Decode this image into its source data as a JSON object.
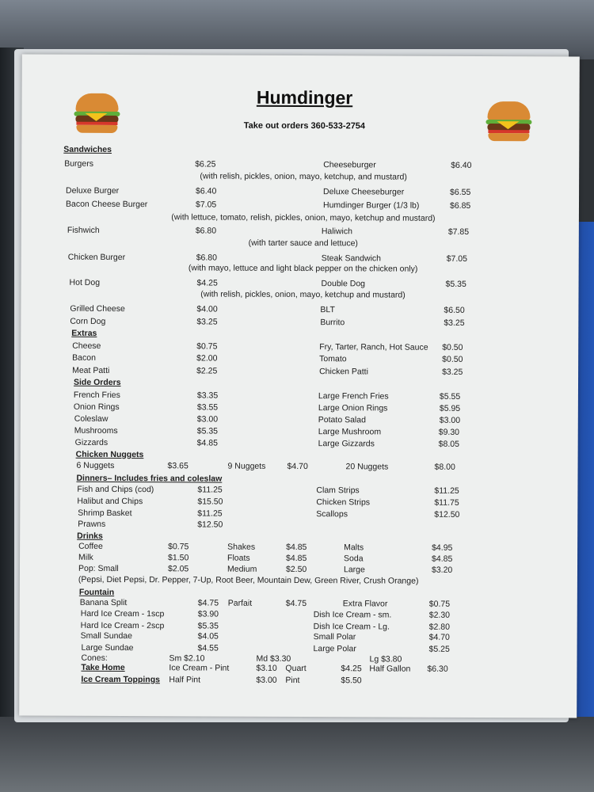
{
  "title": "Humdinger",
  "subtitle": "Take out orders 360-533-2754",
  "rows": [
    {
      "type": "heading",
      "cells": [
        "Sandwiches"
      ]
    },
    {
      "type": "item",
      "cells": [
        "Burgers",
        "$6.25",
        "Cheeseburger",
        "$6.40"
      ]
    },
    {
      "type": "note",
      "cells": [
        "(with relish, pickles, onion, mayo, ketchup, and mustard)"
      ]
    },
    {
      "type": "item",
      "cells": [
        "Deluxe Burger",
        "$6.40",
        "Deluxe Cheeseburger",
        "$6.55"
      ]
    },
    {
      "type": "item",
      "cells": [
        "Bacon Cheese Burger",
        "$7.05",
        "Humdinger Burger (1/3 lb)",
        "$6.85"
      ]
    },
    {
      "type": "note",
      "cells": [
        "(with lettuce, tomato, relish, pickles, onion, mayo, ketchup and mustard)"
      ]
    },
    {
      "type": "item",
      "cells": [
        "Fishwich",
        "$6.80",
        "Haliwich",
        "$7.85"
      ]
    },
    {
      "type": "note",
      "cells": [
        "(with tarter sauce and lettuce)"
      ]
    },
    {
      "type": "item",
      "cells": [
        "Chicken Burger",
        "$6.80",
        "Steak Sandwich",
        "$7.05"
      ]
    },
    {
      "type": "note",
      "cells": [
        "(with mayo, lettuce and light black pepper on the chicken only)"
      ]
    },
    {
      "type": "item",
      "cells": [
        "Hot Dog",
        "$4.25",
        "Double Dog",
        "$5.35"
      ]
    },
    {
      "type": "note",
      "cells": [
        "(with relish, pickles, onion, mayo, ketchup and mustard)"
      ]
    },
    {
      "type": "item",
      "cells": [
        "Grilled Cheese",
        "$4.00",
        "BLT",
        "$6.50"
      ]
    },
    {
      "type": "item",
      "cells": [
        "Corn Dog",
        "$3.25",
        "Burrito",
        "$3.25"
      ]
    },
    {
      "type": "heading",
      "cells": [
        "Extras"
      ]
    },
    {
      "type": "item",
      "cells": [
        "Cheese",
        "$0.75",
        "Fry, Tarter, Ranch, Hot Sauce",
        "$0.50"
      ]
    },
    {
      "type": "item",
      "cells": [
        "Bacon",
        "$2.00",
        "Tomato",
        "$0.50"
      ]
    },
    {
      "type": "item",
      "cells": [
        "Meat Patti",
        "$2.25",
        "Chicken Patti",
        "$3.25"
      ]
    },
    {
      "type": "heading",
      "cells": [
        "Side Orders"
      ]
    },
    {
      "type": "item",
      "cells": [
        "French Fries",
        "$3.35",
        "Large French Fries",
        "$5.55"
      ]
    },
    {
      "type": "item",
      "cells": [
        "Onion Rings",
        "$3.55",
        "Large Onion Rings",
        "$5.95"
      ]
    },
    {
      "type": "item",
      "cells": [
        "Coleslaw",
        "$3.00",
        "Potato Salad",
        "$3.00"
      ]
    },
    {
      "type": "item",
      "cells": [
        "Mushrooms",
        "$5.35",
        "Large Mushroom",
        "$9.30"
      ]
    },
    {
      "type": "item",
      "cells": [
        "Gizzards",
        "$4.85",
        "Large Gizzards",
        "$8.05"
      ]
    },
    {
      "type": "heading",
      "cells": [
        "Chicken Nuggets"
      ]
    },
    {
      "type": "item",
      "cells": [
        "6 Nuggets",
        "$3.65",
        "9 Nuggets",
        "$4.70",
        "20 Nuggets",
        "$8.00"
      ]
    },
    {
      "type": "heading",
      "cells": [
        "Dinners– Includes fries and coleslaw"
      ]
    },
    {
      "type": "item",
      "cells": [
        "Fish and Chips (cod)",
        "$11.25",
        "Clam Strips",
        "$11.25"
      ]
    },
    {
      "type": "item",
      "cells": [
        "Halibut and Chips",
        "$15.50",
        "Chicken Strips",
        "$11.75"
      ]
    },
    {
      "type": "item",
      "cells": [
        "Shrimp Basket",
        "$11.25",
        "Scallops",
        "$12.50"
      ]
    },
    {
      "type": "item",
      "cells": [
        "Prawns",
        "$12.50"
      ]
    },
    {
      "type": "heading",
      "cells": [
        "Drinks"
      ]
    },
    {
      "type": "item",
      "cells": [
        "Coffee",
        "$0.75",
        "Shakes",
        "$4.85",
        "Malts",
        "$4.95"
      ]
    },
    {
      "type": "item",
      "cells": [
        "Milk",
        "$1.50",
        "Floats",
        "$4.85",
        "Soda",
        "$4.85"
      ]
    },
    {
      "type": "item",
      "cells": [
        "Pop: Small",
        "$2.05",
        "Medium",
        "$2.50",
        "Large",
        "$3.20"
      ]
    },
    {
      "type": "note",
      "cells": [
        "(Pepsi, Diet Pepsi, Dr. Pepper, 7-Up, Root Beer, Mountain Dew, Green River, Crush Orange)"
      ]
    },
    {
      "type": "heading",
      "cells": [
        "Fountain"
      ]
    },
    {
      "type": "item",
      "cells": [
        "Banana Split",
        "$4.75",
        "Parfait",
        "$4.75",
        "Extra Flavor",
        "$0.75"
      ]
    },
    {
      "type": "item",
      "cells": [
        "Hard Ice Cream  - 1scp",
        "$3.90",
        "Dish Ice Cream  - sm.",
        "$2.30"
      ]
    },
    {
      "type": "item",
      "cells": [
        "Hard Ice Cream  - 2scp",
        "$5.35",
        "Dish Ice Cream  - Lg.",
        "$2.80"
      ]
    },
    {
      "type": "item",
      "cells": [
        "Small Sundae",
        "$4.05",
        "Small Polar",
        "$4.70"
      ]
    },
    {
      "type": "item",
      "cells": [
        "Large Sundae",
        "$4.55",
        "Large Polar",
        "$5.25"
      ]
    },
    {
      "type": "item",
      "cells": [
        "Cones:",
        "Sm $2.10",
        "Md $3.30",
        "Lg $3.80"
      ]
    },
    {
      "type": "item",
      "cells": [
        "Take  Home",
        "Ice Cream  - Pint",
        "$3.10",
        "Quart",
        "$4.25",
        "Half Gallon",
        "$6.30"
      ]
    },
    {
      "type": "item",
      "cells": [
        "Ice Cream Toppings",
        "Half Pint",
        "$3.00",
        "Pint",
        "$5.50"
      ]
    }
  ],
  "icons": [
    "burger-icon",
    "burger-icon"
  ],
  "colors": {
    "paper": "#eef0ef",
    "text": "#1e1e1e",
    "frame_blue": "#2457b8"
  }
}
